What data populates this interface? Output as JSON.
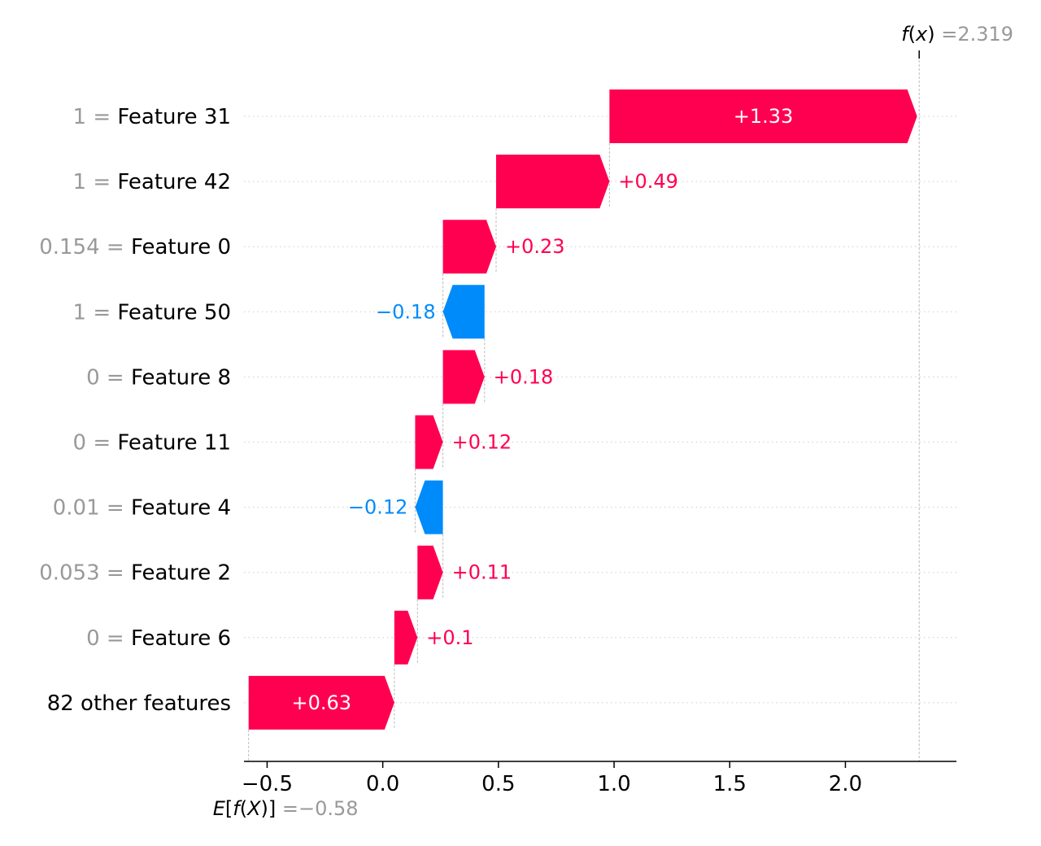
{
  "chart_data": {
    "type": "waterfall",
    "base_value": {
      "label": "E[f(X)]",
      "eq": "=",
      "value_text": "−0.58",
      "value": -0.58
    },
    "output_value": {
      "label": "f(x)",
      "eq": "=",
      "value_text": "2.319",
      "value": 2.319
    },
    "features": [
      {
        "value_text": "1",
        "name": "Feature 31",
        "contribution": 1.33,
        "label": "+1.33"
      },
      {
        "value_text": "1",
        "name": "Feature 42",
        "contribution": 0.49,
        "label": "+0.49"
      },
      {
        "value_text": "0.154",
        "name": "Feature 0",
        "contribution": 0.23,
        "label": "+0.23"
      },
      {
        "value_text": "1",
        "name": "Feature 50",
        "contribution": -0.18,
        "label": "−0.18"
      },
      {
        "value_text": "0",
        "name": "Feature 8",
        "contribution": 0.18,
        "label": "+0.18"
      },
      {
        "value_text": "0",
        "name": "Feature 11",
        "contribution": 0.12,
        "label": "+0.12"
      },
      {
        "value_text": "0.01",
        "name": "Feature 4",
        "contribution": -0.12,
        "label": "−0.12"
      },
      {
        "value_text": "0.053",
        "name": "Feature 2",
        "contribution": 0.11,
        "label": "+0.11"
      },
      {
        "value_text": "0",
        "name": "Feature 6",
        "contribution": 0.1,
        "label": "+0.1"
      },
      {
        "value_text": "",
        "name": "82 other features",
        "contribution": 0.63,
        "label": "+0.63"
      }
    ],
    "x_ticks": [
      {
        "value": -0.5,
        "label": "−0.5"
      },
      {
        "value": 0.0,
        "label": "0.0"
      },
      {
        "value": 0.5,
        "label": "0.5"
      },
      {
        "value": 1.0,
        "label": "1.0"
      },
      {
        "value": 1.5,
        "label": "1.5"
      },
      {
        "value": 2.0,
        "label": "2.0"
      }
    ],
    "xlim": [
      -0.6,
      2.48
    ],
    "colors": {
      "positive": "#ff0051",
      "negative": "#008bfb",
      "muted": "#999999",
      "text": "#000000"
    }
  }
}
